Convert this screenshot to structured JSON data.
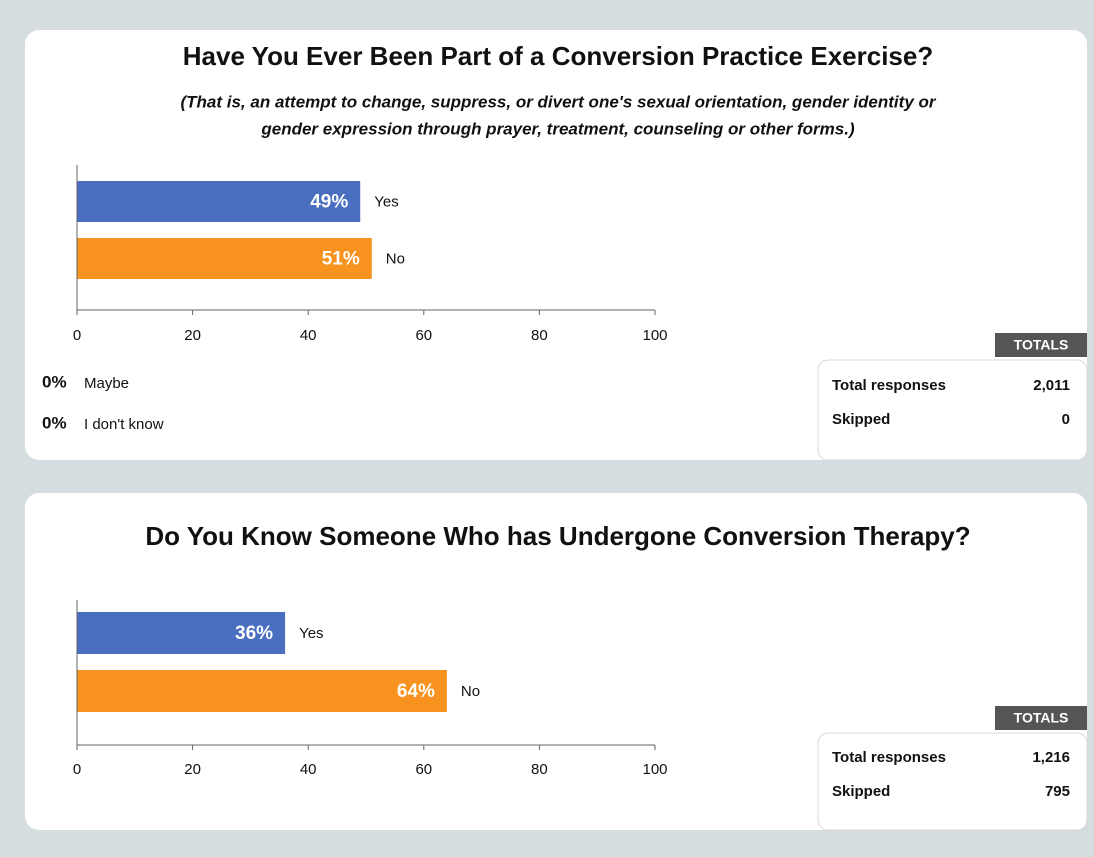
{
  "chart_data": [
    {
      "type": "bar",
      "title": "Have You Ever Been Part of a Conversion Practice Exercise?",
      "subtitle": [
        "(That is, an attempt to change, suppress, or divert one's sexual orientation, gender identity or",
        "gender expression through prayer, treatment, counseling or other forms.)"
      ],
      "categories": [
        "Yes",
        "No"
      ],
      "values": [
        49,
        51
      ],
      "value_labels": [
        "49%",
        "51%"
      ],
      "colors": [
        "#4a6fc0",
        "#f7931e"
      ],
      "xlim": [
        0,
        100
      ],
      "xticks": [
        0,
        20,
        40,
        60,
        80,
        100
      ],
      "other_responses": {
        "categories": [
          "Maybe",
          "I don't know"
        ],
        "values": [
          0,
          0
        ],
        "value_labels": [
          "0%",
          "0%"
        ]
      },
      "totals": {
        "heading": "TOTALS",
        "rows": [
          {
            "label": "Total responses",
            "value": {
              "value": 2011,
              "label": "2,011"
            }
          },
          {
            "label": "Skipped",
            "value": 0
          }
        ]
      }
    },
    {
      "type": "bar",
      "title": "Do You Know Someone Who has Undergone Conversion Therapy?",
      "categories": [
        "Yes",
        "No"
      ],
      "values": [
        36,
        64
      ],
      "value_labels": [
        "36%",
        "64%"
      ],
      "colors": [
        "#4a6fc0",
        "#f7931e"
      ],
      "xlim": [
        0,
        100
      ],
      "xticks": [
        0,
        20,
        40,
        60,
        80,
        100
      ],
      "totals": {
        "heading": "TOTALS",
        "rows": [
          {
            "label": "Total responses",
            "value": {
              "value": 1216,
              "label": "1,216"
            }
          },
          {
            "label": "Skipped",
            "value": 795
          }
        ]
      }
    }
  ]
}
